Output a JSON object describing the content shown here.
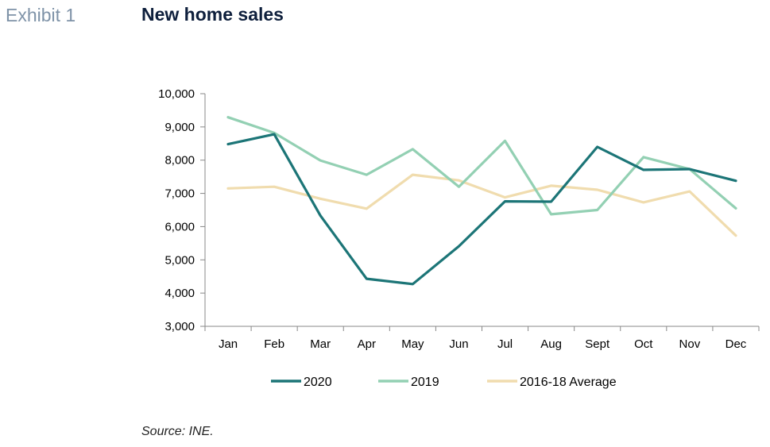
{
  "header": {
    "exhibit_label": "Exhibit 1",
    "title": "New home sales"
  },
  "footer": {
    "source": "Source: INE."
  },
  "chart_data": {
    "type": "line",
    "title": "New home sales",
    "xlabel": "",
    "ylabel": "",
    "categories": [
      "Jan",
      "Feb",
      "Mar",
      "Apr",
      "May",
      "Jun",
      "Jul",
      "Aug",
      "Sept",
      "Oct",
      "Nov",
      "Dec"
    ],
    "ylim": [
      3000,
      10000
    ],
    "yticks": [
      3000,
      4000,
      5000,
      6000,
      7000,
      8000,
      9000,
      10000
    ],
    "ytick_labels": [
      "3,000",
      "4,000",
      "5,000",
      "6,000",
      "7,000",
      "8,000",
      "9,000",
      "10,000"
    ],
    "grid": false,
    "legend_position": "bottom",
    "series": [
      {
        "name": "2020",
        "color": "#1c7577",
        "values": [
          8480,
          8780,
          6330,
          4430,
          4270,
          5410,
          6760,
          6750,
          8400,
          7710,
          7730,
          7380
        ]
      },
      {
        "name": "2019",
        "color": "#93d0b3",
        "values": [
          9290,
          8820,
          7990,
          7560,
          8330,
          7200,
          8580,
          6370,
          6500,
          8090,
          7730,
          6550
        ]
      },
      {
        "name": "2016-18 Average",
        "color": "#f0dcae",
        "values": [
          7150,
          7200,
          6840,
          6540,
          7560,
          7390,
          6880,
          7230,
          7110,
          6730,
          7060,
          5730
        ]
      }
    ]
  }
}
